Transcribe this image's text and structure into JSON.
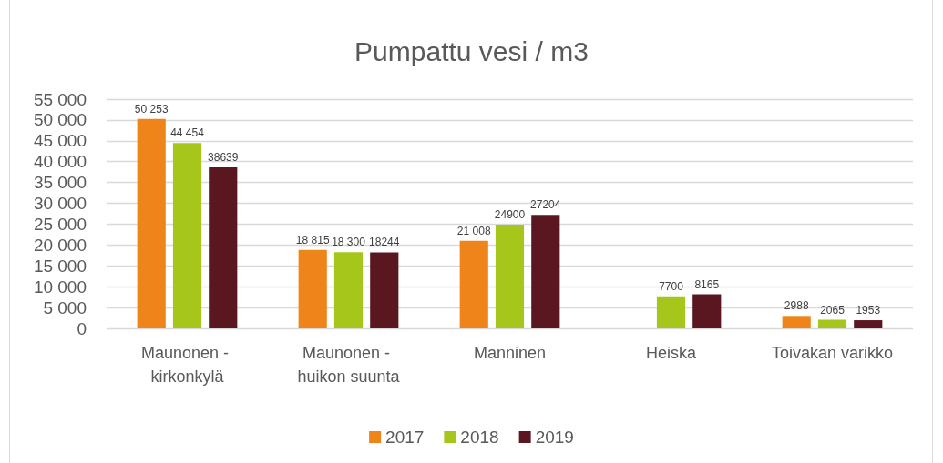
{
  "chart_data": {
    "type": "bar",
    "title": "Pumpattu vesi / m3",
    "categories": [
      "Maunonen - kirkonkylä",
      "Maunonen - huikon suunta",
      "Manninen",
      "Heiska",
      "Toivakan varikko"
    ],
    "series": [
      {
        "name": "2017",
        "color": "#ef841a",
        "values": [
          50253,
          18815,
          21008,
          null,
          2988
        ],
        "value_labels": [
          "50 253",
          "18 815",
          "21 008",
          null,
          "2988"
        ]
      },
      {
        "name": "2018",
        "color": "#a6c61b",
        "values": [
          44454,
          18300,
          24900,
          7700,
          2065
        ],
        "value_labels": [
          "44 454",
          "18 300",
          "24900",
          "7700",
          "2065"
        ]
      },
      {
        "name": "2019",
        "color": "#5a1720",
        "values": [
          38639,
          18244,
          27204,
          8165,
          1953
        ],
        "value_labels": [
          "38639",
          "18244",
          "27204",
          "8165",
          "1953"
        ]
      }
    ],
    "ylim": [
      0,
      55000
    ],
    "yticks": [
      0,
      {
        "value": 5000,
        "label": "5 000"
      },
      {
        "value": 10000,
        "label": "10 000"
      },
      {
        "value": 15000,
        "label": "15 000"
      },
      {
        "value": 20000,
        "label": "20 000"
      },
      {
        "value": 25000,
        "label": "25 000"
      },
      {
        "value": 30000,
        "label": "30 000"
      },
      {
        "value": 35000,
        "label": "35 000"
      },
      {
        "value": 40000,
        "label": "40 000"
      },
      {
        "value": 45000,
        "label": "45 000"
      },
      {
        "value": 50000,
        "label": "50 000"
      },
      {
        "value": 55000,
        "label": "55 000"
      }
    ],
    "grid": "y",
    "legend": "bottom"
  }
}
